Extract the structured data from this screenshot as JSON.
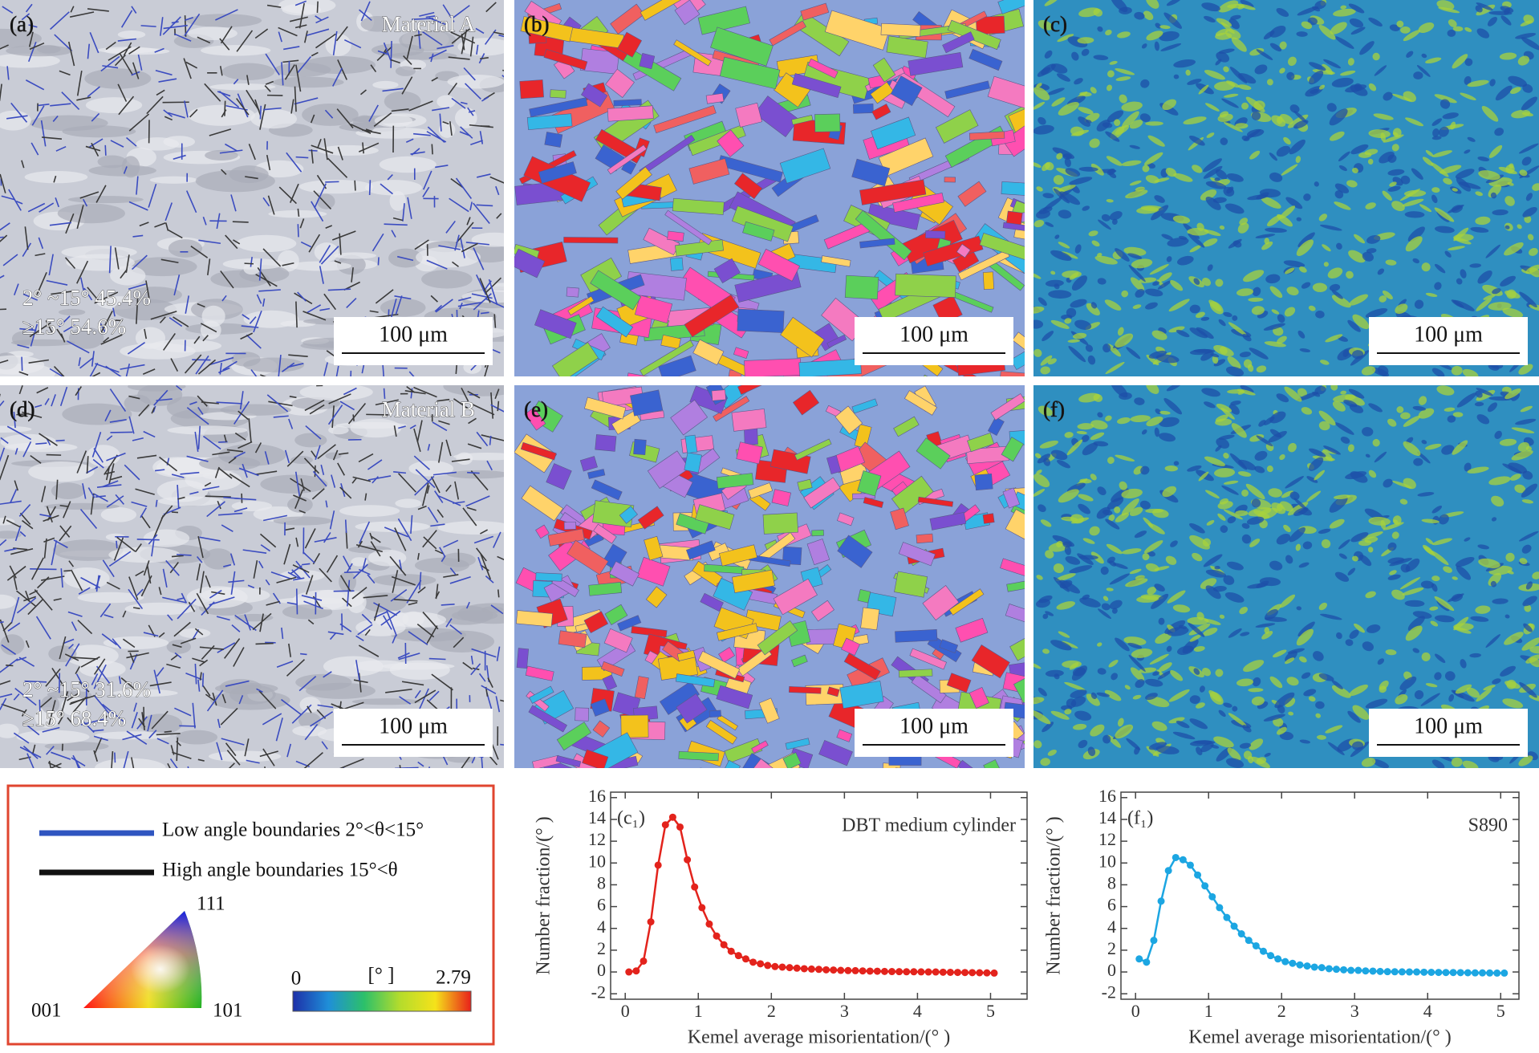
{
  "panels": [
    {
      "label": "(a)",
      "title": "Material A",
      "stats": [
        "2° ~15°  45.4%",
        "≥15°  54.6%"
      ],
      "scale_bar": "100 μm"
    },
    {
      "label": "(b)",
      "scale_bar": "100 μm"
    },
    {
      "label": "(c)",
      "scale_bar": "100 μm"
    },
    {
      "label": "(d)",
      "title": "Material B",
      "stats": [
        "2° ~15°  31.6%",
        "≥15°  68.4%"
      ],
      "scale_bar": "100 μm"
    },
    {
      "label": "(e)",
      "scale_bar": "100 μm"
    },
    {
      "label": "(f)",
      "scale_bar": "100 μm"
    }
  ],
  "legend": {
    "low": "Low angle boundaries 2°<θ<15°",
    "high": "High angle boundaries 15°<θ",
    "ipf": {
      "top": "111",
      "left": "001",
      "right": "101"
    },
    "colorbar": {
      "min": "0",
      "unit": "[° ]",
      "max": "2.79"
    }
  },
  "chart_data": [
    {
      "type": "line",
      "title": "(c₁)",
      "annotation": "DBT medium cylinder",
      "color": "#e3231c",
      "x_label": "Kemel average misorientation/(° )",
      "y_label": "Number fraction/(° )",
      "x": [
        0.05,
        0.15,
        0.25,
        0.35,
        0.45,
        0.55,
        0.65,
        0.75,
        0.85,
        0.95,
        1.05,
        1.15,
        1.25,
        1.35,
        1.45,
        1.55,
        1.65,
        1.75,
        1.85,
        1.95,
        2.05,
        2.15,
        2.25,
        2.35,
        2.45,
        2.55,
        2.65,
        2.75,
        2.85,
        2.95,
        3.05,
        3.15,
        3.25,
        3.35,
        3.45,
        3.55,
        3.65,
        3.75,
        3.85,
        3.95,
        4.05,
        4.15,
        4.25,
        4.35,
        4.45,
        4.55,
        4.65,
        4.75,
        4.85,
        4.95,
        5.05
      ],
      "values": [
        0,
        0.1,
        1,
        4.6,
        9.8,
        13.5,
        14.2,
        13.3,
        10.3,
        7.8,
        5.9,
        4.4,
        3.3,
        2.5,
        1.9,
        1.5,
        1.2,
        0.9,
        0.75,
        0.6,
        0.5,
        0.45,
        0.4,
        0.35,
        0.3,
        0.27,
        0.24,
        0.2,
        0.18,
        0.15,
        0.13,
        0.12,
        0.1,
        0.08,
        0.07,
        0.05,
        0.04,
        0.03,
        0.02,
        0.02,
        0.01,
        0,
        0,
        -0.02,
        -0.03,
        -0.04,
        -0.05,
        -0.06,
        -0.07,
        -0.08,
        -0.1
      ],
      "xlim": [
        -0.2,
        5.5
      ],
      "ylim": [
        -2.5,
        16.5
      ],
      "xticks": [
        0,
        1,
        2,
        3,
        4,
        5
      ],
      "yticks": [
        -2,
        0,
        2,
        4,
        6,
        8,
        10,
        12,
        14,
        16
      ]
    },
    {
      "type": "line",
      "title": "(f₁)",
      "annotation": "S890",
      "color": "#1ca6e2",
      "x_label": "Kemel average misorientation/(° )",
      "y_label": "Number fraction/(° )",
      "x": [
        0.05,
        0.15,
        0.25,
        0.35,
        0.45,
        0.55,
        0.65,
        0.75,
        0.85,
        0.95,
        1.05,
        1.15,
        1.25,
        1.35,
        1.45,
        1.55,
        1.65,
        1.75,
        1.85,
        1.95,
        2.05,
        2.15,
        2.25,
        2.35,
        2.45,
        2.55,
        2.65,
        2.75,
        2.85,
        2.95,
        3.05,
        3.15,
        3.25,
        3.35,
        3.45,
        3.55,
        3.65,
        3.75,
        3.85,
        3.95,
        4.05,
        4.15,
        4.25,
        4.35,
        4.45,
        4.55,
        4.65,
        4.75,
        4.85,
        4.95,
        5.05
      ],
      "values": [
        1.2,
        0.9,
        2.9,
        6.5,
        9.3,
        10.5,
        10.3,
        9.8,
        8.9,
        7.9,
        6.9,
        5.9,
        5.0,
        4.2,
        3.5,
        2.9,
        2.4,
        1.9,
        1.5,
        1.2,
        0.95,
        0.8,
        0.65,
        0.55,
        0.45,
        0.4,
        0.3,
        0.25,
        0.2,
        0.15,
        0.15,
        0.1,
        0.08,
        0.05,
        0.03,
        0.02,
        0.01,
        0,
        0,
        -0.02,
        -0.03,
        -0.04,
        -0.05,
        -0.05,
        -0.06,
        -0.07,
        -0.08,
        -0.08,
        -0.09,
        -0.1,
        -0.1
      ],
      "xlim": [
        -0.2,
        5.25
      ],
      "ylim": [
        -2.5,
        16.5
      ],
      "xticks": [
        0,
        1,
        2,
        3,
        4,
        5
      ],
      "yticks": [
        -2,
        0,
        2,
        4,
        6,
        8,
        10,
        12,
        14,
        16
      ]
    }
  ]
}
